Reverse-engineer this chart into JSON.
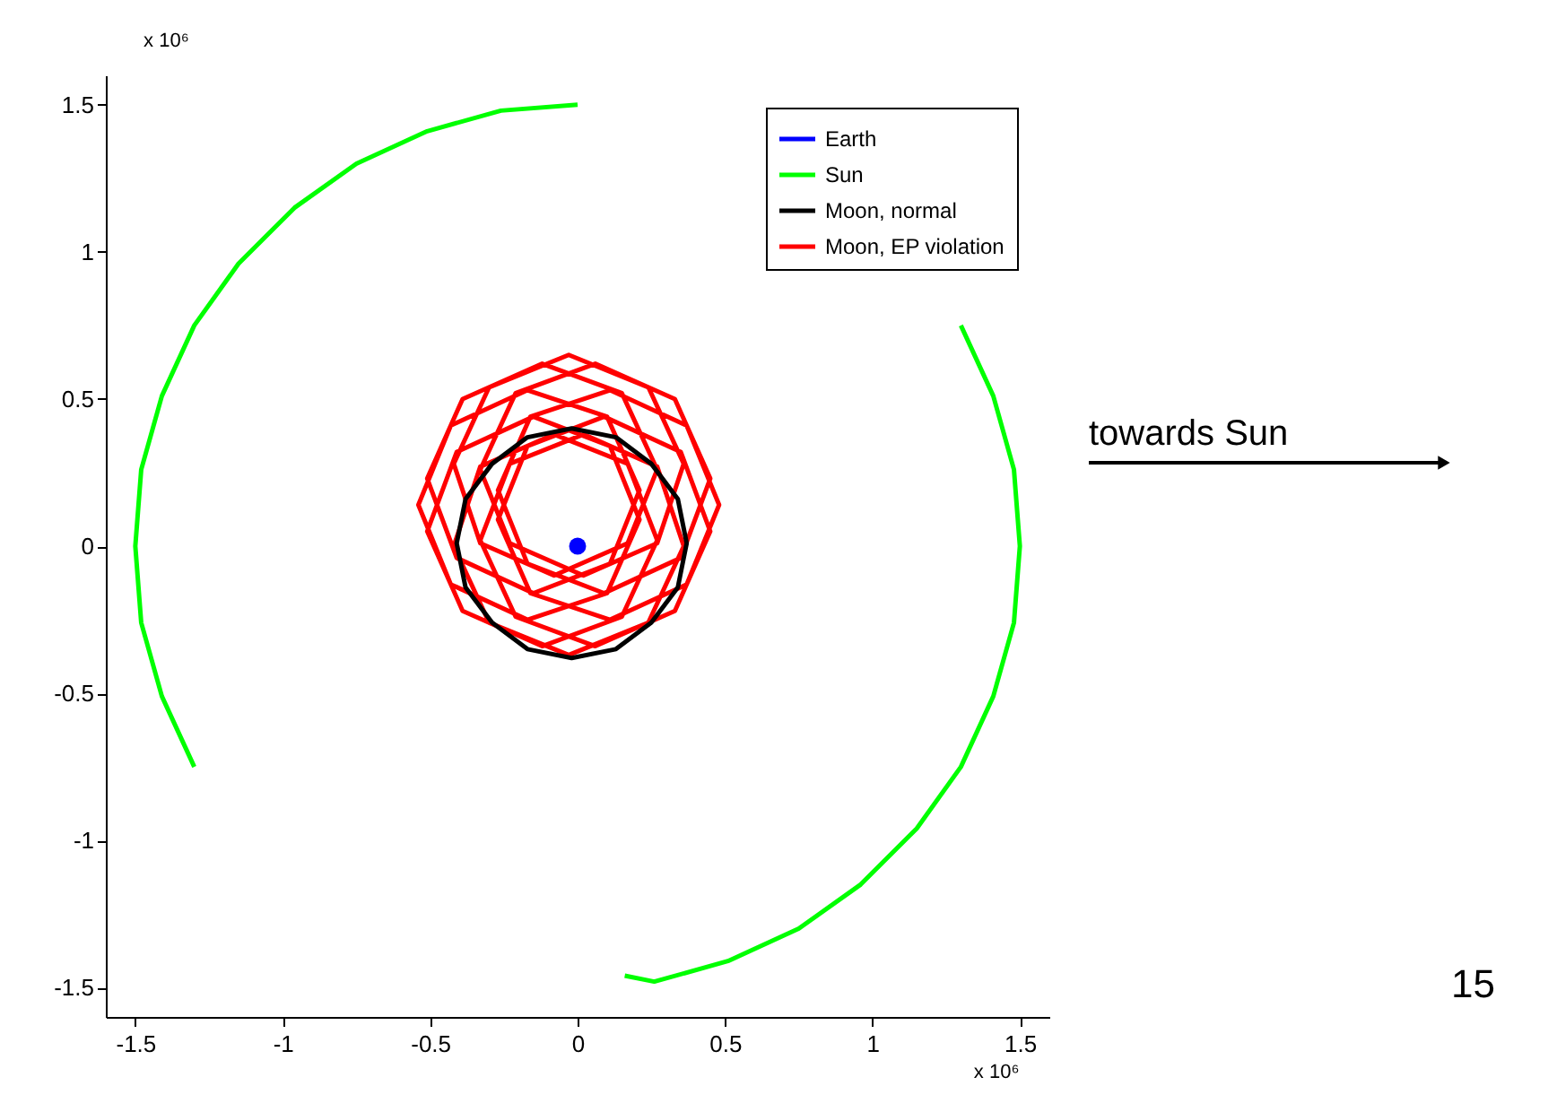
{
  "chart_data": {
    "type": "line",
    "xlim": [
      -1.6,
      1.6
    ],
    "ylim": [
      -1.6,
      1.6
    ],
    "xticks": [
      -1.5,
      -1,
      -0.5,
      0,
      0.5,
      1,
      1.5
    ],
    "yticks": [
      -1.5,
      -1,
      -0.5,
      0,
      0.5,
      1,
      1.5
    ],
    "grid": false,
    "legend": "top right",
    "line_style": "solid",
    "annotations": [
      "x 10⁶",
      "x 10⁶",
      "towards Sun",
      "15"
    ],
    "series": [
      {
        "name": "Earth",
        "type": "scatter",
        "marker": "circle",
        "color": "#0000ff",
        "x": [
          0
        ],
        "values": [
          0
        ]
      },
      {
        "name": "Sun",
        "type": "line",
        "marker": "none",
        "color": "#00ff00",
        "x": [
          -1.3,
          -1.41,
          -1.48,
          -1.5,
          -1.48,
          -1.41,
          -1.3,
          -1.15,
          -0.96,
          -0.75,
          -0.51,
          -0.26,
          0,
          0.75,
          1.3,
          1.41,
          1.48,
          1.5,
          1.48,
          1.41,
          1.3,
          1.15,
          0.96,
          0.75,
          0.51,
          0.26,
          0.16
        ],
        "values": [
          -0.75,
          -0.51,
          -0.26,
          0,
          0.26,
          0.51,
          0.75,
          0.96,
          1.15,
          1.3,
          1.41,
          1.48,
          1.5,
          null,
          0.75,
          0.51,
          0.26,
          0,
          -0.26,
          -0.51,
          -0.75,
          -0.96,
          -1.15,
          -1.3,
          -1.41,
          -1.48,
          -1.46
        ]
      },
      {
        "name": "Moon, normal",
        "type": "line",
        "marker": "none",
        "color": "#000000",
        "x": [
          0.37,
          0.34,
          0.25,
          0.13,
          -0.02,
          -0.17,
          -0.29,
          -0.38,
          -0.41,
          -0.38,
          -0.29,
          -0.17,
          -0.02,
          0.13,
          0.25,
          0.34,
          0.37,
          0.34
        ],
        "values": [
          0.01,
          0.16,
          0.28,
          0.37,
          0.4,
          0.37,
          0.28,
          0.16,
          0.01,
          -0.14,
          -0.26,
          -0.35,
          -0.38,
          -0.35,
          -0.26,
          -0.14,
          0.01,
          0.16
        ]
      },
      {
        "name": "Moon, EP violation",
        "type": "line",
        "marker": "none",
        "color": "#ff0000",
        "x": [
          0.48,
          0.37,
          0.11,
          -0.16,
          -0.27,
          -0.17,
          0.09,
          0.35,
          0.45,
          0.33,
          0.06,
          -0.21,
          -0.33,
          -0.23,
          0.02,
          0.27,
          0.36,
          0.24,
          -0.03,
          -0.3,
          -0.42,
          -0.33,
          -0.08,
          0.17,
          0.27,
          0.15,
          -0.12,
          -0.39,
          -0.51,
          -0.41,
          -0.15,
          0.11,
          0.21,
          0.1,
          -0.17,
          -0.43,
          -0.54,
          -0.43,
          -0.17,
          0.1,
          0.21,
          0.11,
          -0.15,
          -0.41,
          -0.51,
          -0.39,
          -0.12,
          0.15,
          0.27,
          0.17,
          -0.08,
          -0.33,
          -0.42,
          -0.3,
          -0.03,
          0.24,
          0.36,
          0.27,
          0.02,
          -0.23,
          -0.33,
          -0.21,
          0.06,
          0.33,
          0.45,
          0.35,
          0.09,
          -0.17,
          -0.27,
          -0.16,
          0.11,
          0.37,
          0.48,
          0.37
        ],
        "values": [
          0.14,
          0.41,
          0.53,
          0.44,
          0.19,
          -0.06,
          -0.16,
          -0.04,
          0.23,
          0.5,
          0.62,
          0.52,
          0.26,
          0.01,
          -0.1,
          0.01,
          0.28,
          0.54,
          0.65,
          0.54,
          0.28,
          0.01,
          -0.1,
          0.01,
          0.26,
          0.52,
          0.62,
          0.5,
          0.23,
          -0.04,
          -0.16,
          -0.06,
          0.19,
          0.44,
          0.53,
          0.41,
          0.14,
          -0.13,
          -0.25,
          -0.16,
          0.09,
          0.34,
          0.44,
          0.32,
          0.05,
          -0.22,
          -0.34,
          -0.24,
          0.02,
          0.28,
          0.38,
          0.27,
          0.0,
          -0.26,
          -0.37,
          -0.26,
          0.0,
          0.27,
          0.38,
          0.28,
          0.02,
          -0.24,
          -0.34,
          -0.22,
          0.05,
          0.32,
          0.44,
          0.34,
          0.09,
          -0.16,
          -0.25,
          -0.13,
          0.14,
          0.41
        ]
      }
    ]
  }
}
